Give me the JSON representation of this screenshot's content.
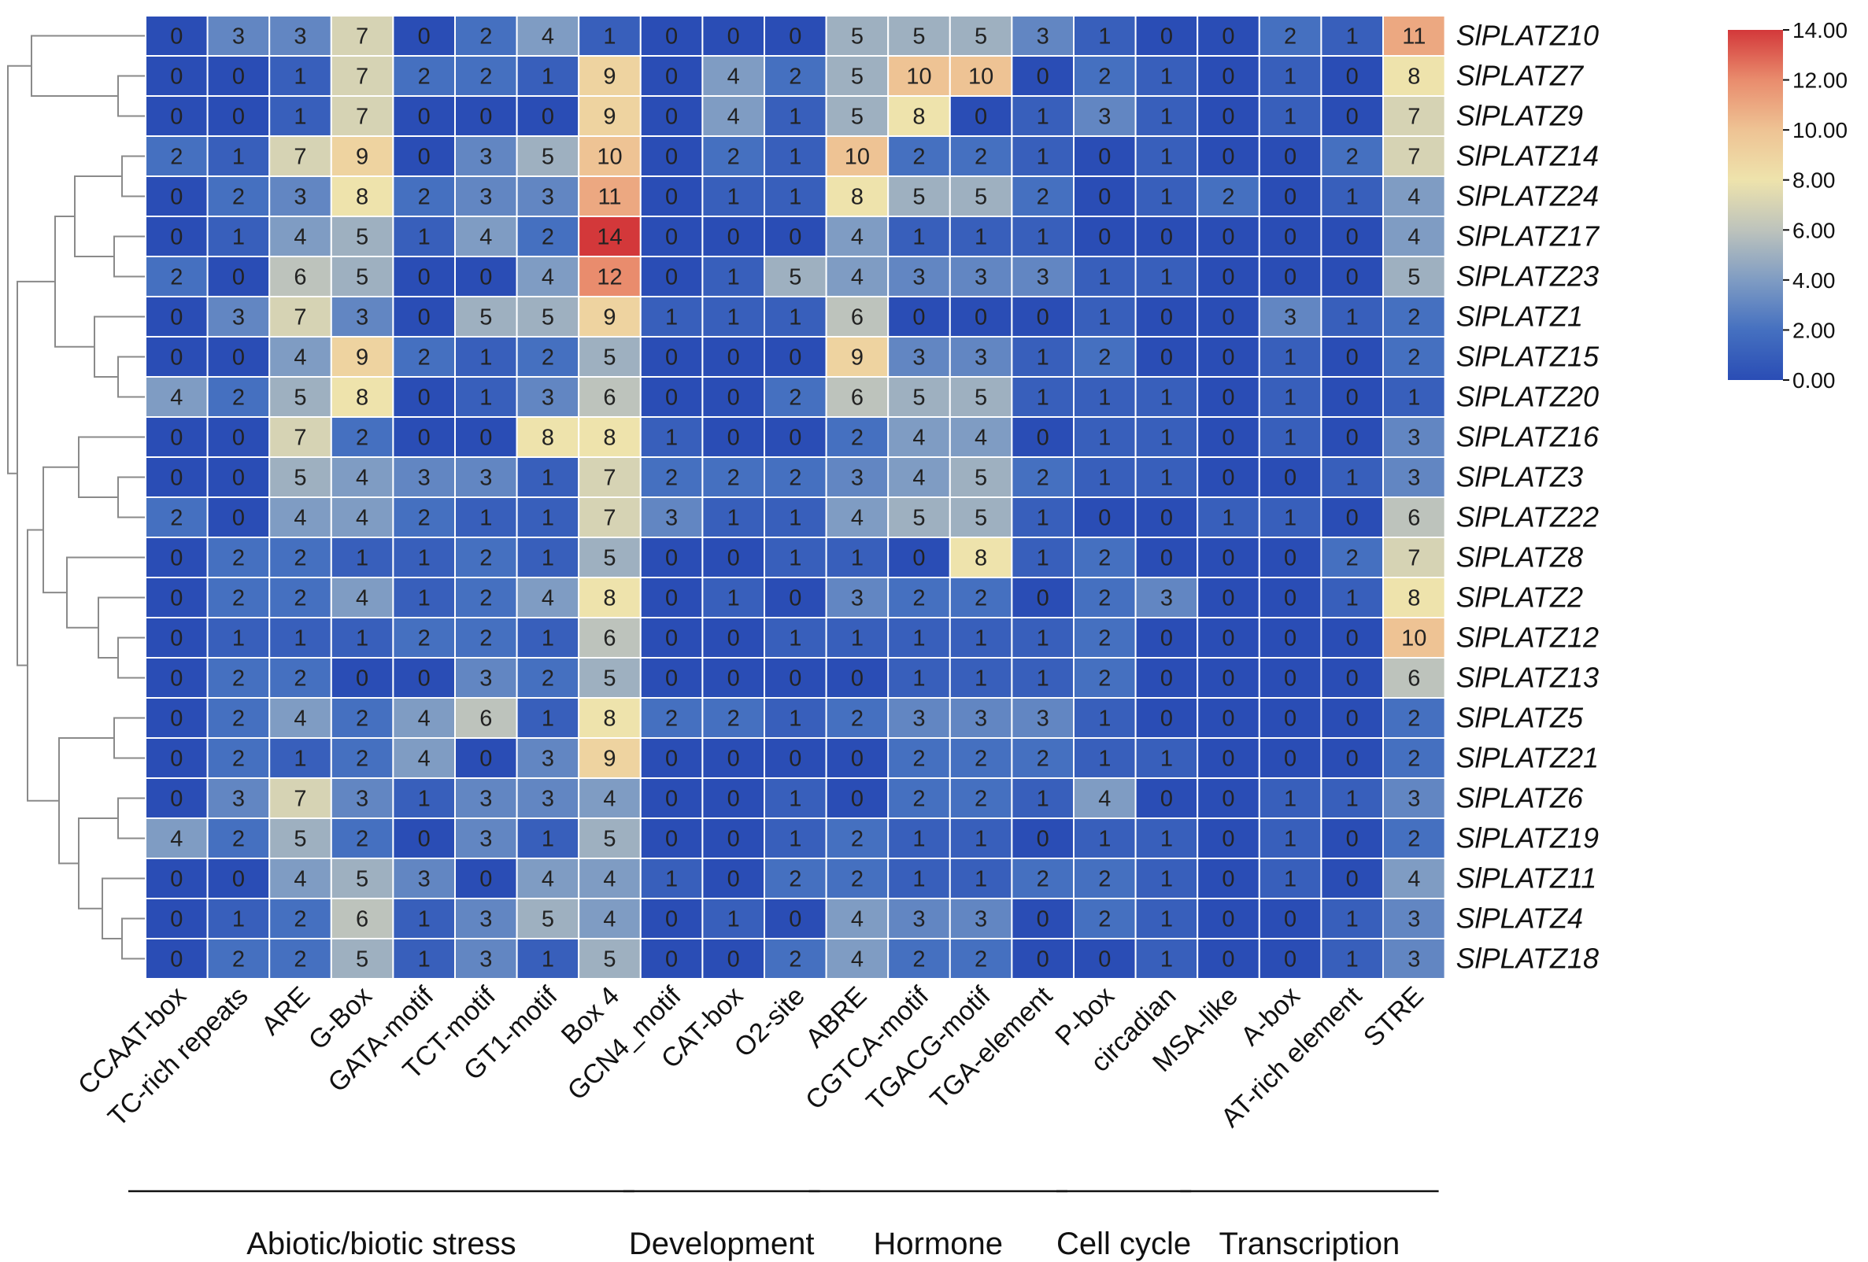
{
  "chart_data": {
    "type": "heatmap",
    "columns": [
      "CCAAT-box",
      "TC-rich repeats",
      "ARE",
      "G-Box",
      "GATA-motif",
      "TCT-motif",
      "GT1-motif",
      "Box 4",
      "GCN4_motif",
      "CAT-box",
      "O2-site",
      "ABRE",
      "CGTCA-motif",
      "TGACG-motif",
      "TGA-element",
      "P-box",
      "circadian",
      "MSA-like",
      "A-box",
      "AT-rich element",
      "STRE"
    ],
    "rows": [
      "SlPLATZ10",
      "SlPLATZ7",
      "SlPLATZ9",
      "SlPLATZ14",
      "SlPLATZ24",
      "SlPLATZ17",
      "SlPLATZ23",
      "SlPLATZ1",
      "SlPLATZ15",
      "SlPLATZ20",
      "SlPLATZ16",
      "SlPLATZ3",
      "SlPLATZ22",
      "SlPLATZ8",
      "SlPLATZ2",
      "SlPLATZ12",
      "SlPLATZ13",
      "SlPLATZ5",
      "SlPLATZ21",
      "SlPLATZ6",
      "SlPLATZ19",
      "SlPLATZ11",
      "SlPLATZ4",
      "SlPLATZ18"
    ],
    "values": [
      [
        0,
        3,
        3,
        7,
        0,
        2,
        4,
        1,
        0,
        0,
        0,
        5,
        5,
        5,
        3,
        1,
        0,
        0,
        2,
        1,
        11
      ],
      [
        0,
        0,
        1,
        7,
        2,
        2,
        1,
        9,
        0,
        4,
        2,
        5,
        10,
        10,
        0,
        2,
        1,
        0,
        1,
        0,
        8
      ],
      [
        0,
        0,
        1,
        7,
        0,
        0,
        0,
        9,
        0,
        4,
        1,
        5,
        8,
        0,
        1,
        3,
        1,
        0,
        1,
        0,
        7
      ],
      [
        2,
        1,
        7,
        9,
        0,
        3,
        5,
        10,
        0,
        2,
        1,
        10,
        2,
        2,
        1,
        0,
        1,
        0,
        0,
        2,
        7
      ],
      [
        0,
        2,
        3,
        8,
        2,
        3,
        3,
        11,
        0,
        1,
        1,
        8,
        5,
        5,
        2,
        0,
        1,
        2,
        0,
        1,
        4
      ],
      [
        0,
        1,
        4,
        5,
        1,
        4,
        2,
        14,
        0,
        0,
        0,
        4,
        1,
        1,
        1,
        0,
        0,
        0,
        0,
        0,
        4
      ],
      [
        2,
        0,
        6,
        5,
        0,
        0,
        4,
        12,
        0,
        1,
        5,
        4,
        3,
        3,
        3,
        1,
        1,
        0,
        0,
        0,
        5
      ],
      [
        0,
        3,
        7,
        3,
        0,
        5,
        5,
        9,
        1,
        1,
        1,
        6,
        0,
        0,
        0,
        1,
        0,
        0,
        3,
        1,
        2
      ],
      [
        0,
        0,
        4,
        9,
        2,
        1,
        2,
        5,
        0,
        0,
        0,
        9,
        3,
        3,
        1,
        2,
        0,
        0,
        1,
        0,
        2
      ],
      [
        4,
        2,
        5,
        8,
        0,
        1,
        3,
        6,
        0,
        0,
        2,
        6,
        5,
        5,
        1,
        1,
        1,
        0,
        1,
        0,
        1
      ],
      [
        0,
        0,
        7,
        2,
        0,
        0,
        8,
        8,
        1,
        0,
        0,
        2,
        4,
        4,
        0,
        1,
        1,
        0,
        1,
        0,
        3
      ],
      [
        0,
        0,
        5,
        4,
        3,
        3,
        1,
        7,
        2,
        2,
        2,
        3,
        4,
        5,
        2,
        1,
        1,
        0,
        0,
        1,
        3
      ],
      [
        2,
        0,
        4,
        4,
        2,
        1,
        1,
        7,
        3,
        1,
        1,
        4,
        5,
        5,
        1,
        0,
        0,
        1,
        1,
        0,
        6
      ],
      [
        0,
        2,
        2,
        1,
        1,
        2,
        1,
        5,
        0,
        0,
        1,
        1,
        0,
        8,
        1,
        2,
        0,
        0,
        0,
        2,
        7
      ],
      [
        0,
        2,
        2,
        4,
        1,
        2,
        4,
        8,
        0,
        1,
        0,
        3,
        2,
        2,
        0,
        2,
        3,
        0,
        0,
        1,
        8
      ],
      [
        0,
        1,
        1,
        1,
        2,
        2,
        1,
        6,
        0,
        0,
        1,
        1,
        1,
        1,
        1,
        2,
        0,
        0,
        0,
        0,
        10
      ],
      [
        0,
        2,
        2,
        0,
        0,
        3,
        2,
        5,
        0,
        0,
        0,
        0,
        1,
        1,
        1,
        2,
        0,
        0,
        0,
        0,
        6
      ],
      [
        0,
        2,
        4,
        2,
        4,
        6,
        1,
        8,
        2,
        2,
        1,
        2,
        3,
        3,
        3,
        1,
        0,
        0,
        0,
        0,
        2
      ],
      [
        0,
        2,
        1,
        2,
        4,
        0,
        3,
        9,
        0,
        0,
        0,
        0,
        2,
        2,
        2,
        1,
        1,
        0,
        0,
        0,
        2
      ],
      [
        0,
        3,
        7,
        3,
        1,
        3,
        3,
        4,
        0,
        0,
        1,
        0,
        2,
        2,
        1,
        4,
        0,
        0,
        1,
        1,
        3
      ],
      [
        4,
        2,
        5,
        2,
        0,
        3,
        1,
        5,
        0,
        0,
        1,
        2,
        1,
        1,
        0,
        1,
        1,
        0,
        1,
        0,
        2
      ],
      [
        0,
        0,
        4,
        5,
        3,
        0,
        4,
        4,
        1,
        0,
        2,
        2,
        1,
        1,
        2,
        2,
        1,
        0,
        1,
        0,
        4
      ],
      [
        0,
        1,
        2,
        6,
        1,
        3,
        5,
        4,
        0,
        1,
        0,
        4,
        3,
        3,
        0,
        2,
        1,
        0,
        0,
        1,
        3
      ],
      [
        0,
        2,
        2,
        5,
        1,
        3,
        1,
        5,
        0,
        0,
        2,
        4,
        2,
        2,
        0,
        0,
        1,
        0,
        0,
        1,
        3
      ]
    ],
    "colorbar": {
      "min": 0,
      "max": 14,
      "ticks": [
        "14.00",
        "12.00",
        "10.00",
        "8.00",
        "6.00",
        "4.00",
        "2.00",
        "0.00"
      ],
      "colors": [
        "#2a4db5",
        "#4570c0",
        "#7f9cc3",
        "#bdc3bc",
        "#eee3ac",
        "#eec394",
        "#e98c6d",
        "#d3383a"
      ]
    },
    "groups": [
      {
        "label": "Abiotic/biotic stress",
        "from": 0,
        "to": 7
      },
      {
        "label": "Development",
        "from": 8,
        "to": 10
      },
      {
        "label": "Hormone",
        "from": 11,
        "to": 14
      },
      {
        "label": "Cell cycle",
        "from": 15,
        "to": 16
      },
      {
        "label": "Transcription",
        "from": 17,
        "to": 20
      }
    ],
    "row_dendrogram": true
  }
}
